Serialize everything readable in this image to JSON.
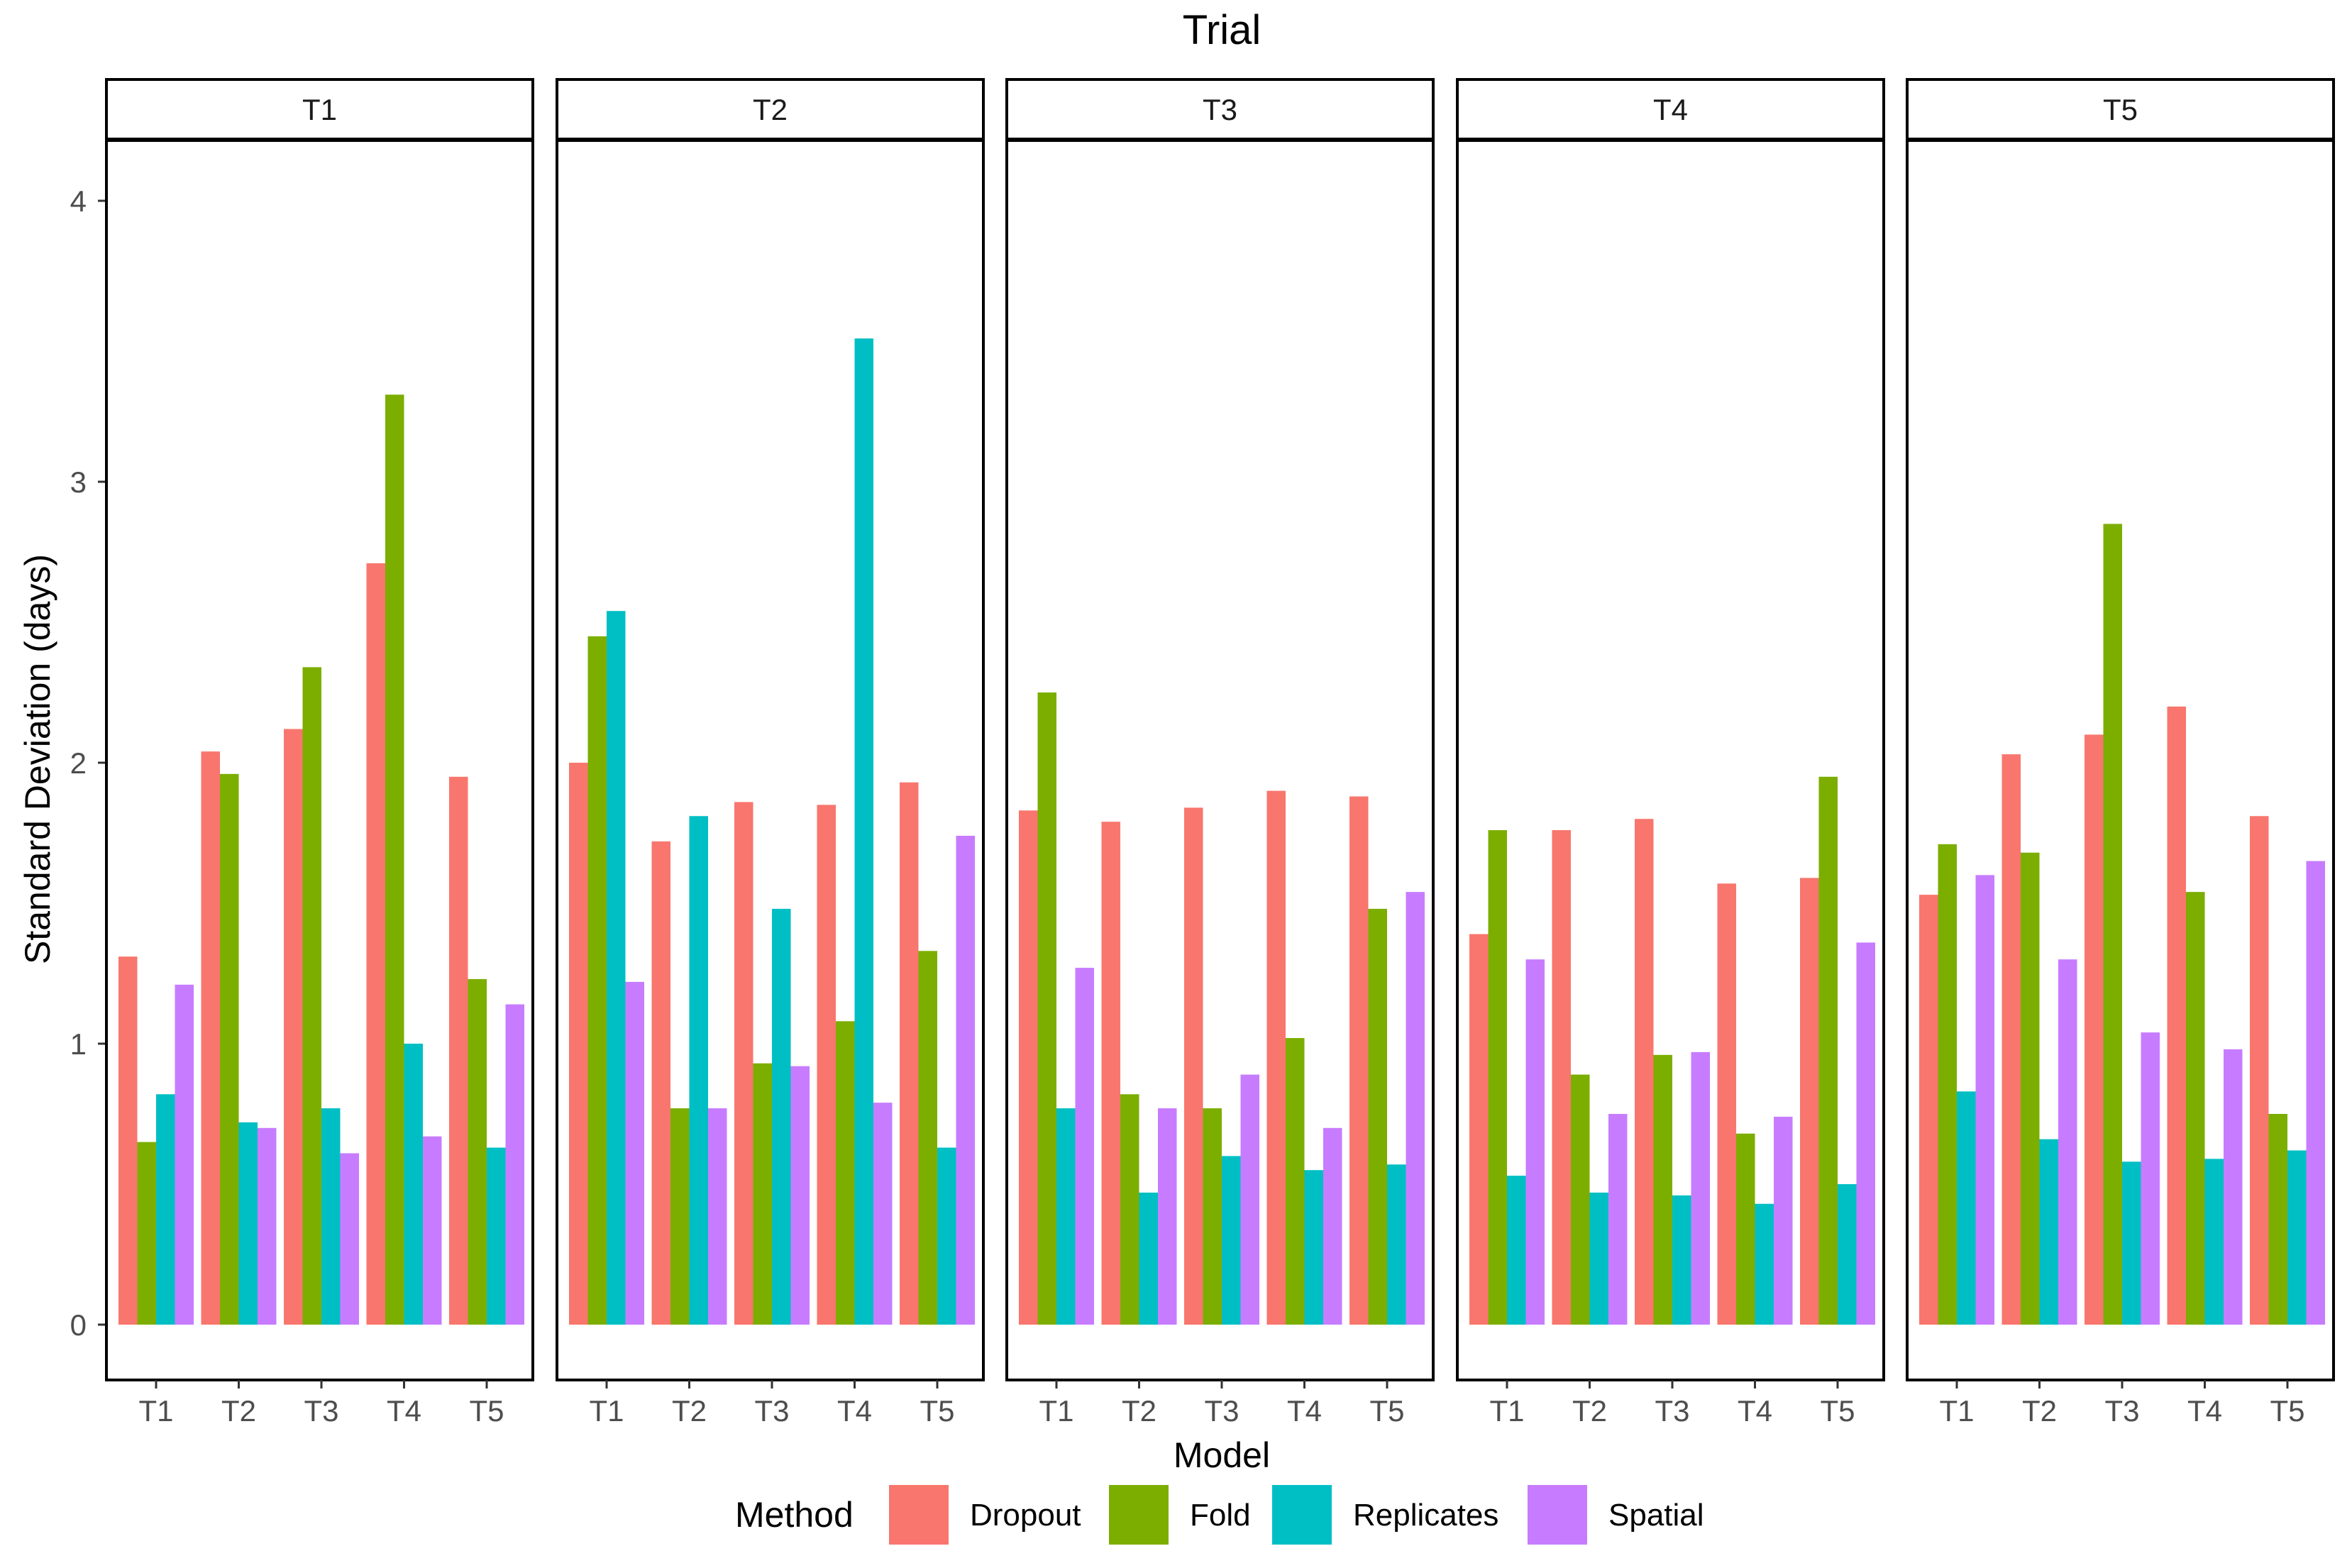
{
  "chart_data": {
    "type": "bar",
    "title": "Trial",
    "xlabel": "Model",
    "ylabel": "Standard Deviation (days)",
    "ylim": [
      -0.2,
      4.2
    ],
    "yticks": [
      0,
      1,
      2,
      3,
      4
    ],
    "grid": false,
    "legend": {
      "title": "Method",
      "placement": "bottom"
    },
    "categories": [
      "T1",
      "T2",
      "T3",
      "T4",
      "T5"
    ],
    "series_names": [
      "Dropout",
      "Fold",
      "Replicates",
      "Spatial"
    ],
    "colors": [
      "#F8766D",
      "#7CAE00",
      "#00BFC4",
      "#C77CFF"
    ],
    "facets": [
      {
        "label": "T1",
        "values": [
          [
            1.31,
            0.65,
            0.82,
            1.21
          ],
          [
            2.04,
            1.96,
            0.72,
            0.7
          ],
          [
            2.12,
            2.34,
            0.77,
            0.61
          ],
          [
            2.71,
            3.31,
            1.0,
            0.67
          ],
          [
            1.95,
            1.23,
            0.63,
            1.14
          ]
        ]
      },
      {
        "label": "T2",
        "values": [
          [
            2.0,
            2.45,
            2.54,
            1.22
          ],
          [
            1.72,
            0.77,
            1.81,
            0.77
          ],
          [
            1.86,
            0.93,
            1.48,
            0.92
          ],
          [
            1.85,
            1.08,
            3.51,
            0.79
          ],
          [
            1.93,
            1.33,
            0.63,
            1.74
          ]
        ]
      },
      {
        "label": "T3",
        "values": [
          [
            1.83,
            2.25,
            0.77,
            1.27
          ],
          [
            1.79,
            0.82,
            0.47,
            0.77
          ],
          [
            1.84,
            0.77,
            0.6,
            0.89
          ],
          [
            1.9,
            1.02,
            0.55,
            0.7
          ],
          [
            1.88,
            1.48,
            0.57,
            1.54
          ]
        ]
      },
      {
        "label": "T4",
        "values": [
          [
            1.39,
            1.76,
            0.53,
            1.3
          ],
          [
            1.76,
            0.89,
            0.47,
            0.75
          ],
          [
            1.8,
            0.96,
            0.46,
            0.97
          ],
          [
            1.57,
            0.68,
            0.43,
            0.74
          ],
          [
            1.59,
            1.95,
            0.5,
            1.36
          ]
        ]
      },
      {
        "label": "T5",
        "values": [
          [
            1.53,
            1.71,
            0.83,
            1.6
          ],
          [
            2.03,
            1.68,
            0.66,
            1.3
          ],
          [
            2.1,
            2.85,
            0.58,
            1.04
          ],
          [
            2.2,
            1.54,
            0.59,
            0.98
          ],
          [
            1.81,
            0.75,
            0.62,
            1.65
          ]
        ]
      }
    ]
  }
}
